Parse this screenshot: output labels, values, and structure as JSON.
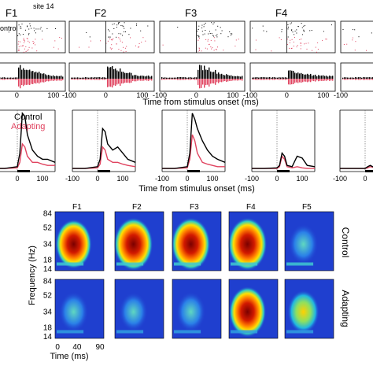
{
  "panel_a": {
    "column_labels": [
      "F1",
      "F2",
      "F3",
      "F4"
    ],
    "site_label": "site 14",
    "row_label_partial": "ontrol",
    "tick_labels": [
      "-100",
      "0",
      "100"
    ],
    "xlabel": "Time from stimulus onset (ms)"
  },
  "panel_b": {
    "legend": [
      "Control",
      "Adapting"
    ],
    "xlabel": "Time from stimulus onset (ms)",
    "tick_labels": [
      "-100",
      "0",
      "100"
    ]
  },
  "panel_c": {
    "column_labels": [
      "F1",
      "F2",
      "F3",
      "F4",
      "F5"
    ],
    "row_labels": [
      "Control",
      "Adapting"
    ],
    "ylabel": "Frequency (Hz)",
    "yticks": [
      "84",
      "52",
      "34",
      "18",
      "14"
    ],
    "xticks": [
      "0",
      "40",
      "90"
    ],
    "xlabel": "Time (ms)"
  },
  "colors": {
    "control": "#000000",
    "adapting": "#e0435f",
    "heatmap_low": "#1f3fcf",
    "heatmap_high": "#8b0000"
  },
  "chart_data": [
    {
      "type": "line",
      "title": "",
      "xlabel": "Time from stimulus onset (ms)",
      "ylabel": "",
      "x": [
        -100,
        -50,
        0,
        10,
        20,
        30,
        40,
        60,
        80,
        100,
        120,
        150
      ],
      "series": [
        {
          "name": "Control",
          "panel": "F1",
          "values": [
            0.05,
            0.05,
            0.08,
            0.3,
            0.95,
            0.9,
            0.6,
            0.35,
            0.25,
            0.2,
            0.2,
            0.15
          ]
        },
        {
          "name": "Adapting",
          "panel": "F1",
          "values": [
            0.05,
            0.05,
            0.06,
            0.15,
            0.45,
            0.4,
            0.25,
            0.15,
            0.15,
            0.12,
            0.1,
            0.1
          ]
        },
        {
          "name": "Control",
          "panel": "F2",
          "values": [
            0.05,
            0.05,
            0.08,
            0.2,
            0.7,
            0.65,
            0.45,
            0.35,
            0.4,
            0.3,
            0.2,
            0.15
          ]
        },
        {
          "name": "Adapting",
          "panel": "F2",
          "values": [
            0.05,
            0.05,
            0.06,
            0.12,
            0.4,
            0.35,
            0.2,
            0.15,
            0.15,
            0.12,
            0.1,
            0.08
          ]
        },
        {
          "name": "Control",
          "panel": "F3",
          "values": [
            0.05,
            0.05,
            0.08,
            0.3,
            0.95,
            0.85,
            0.7,
            0.5,
            0.35,
            0.25,
            0.2,
            0.15
          ]
        },
        {
          "name": "Adapting",
          "panel": "F3",
          "values": [
            0.05,
            0.05,
            0.06,
            0.2,
            0.6,
            0.5,
            0.3,
            0.15,
            0.12,
            0.1,
            0.08,
            0.08
          ]
        },
        {
          "name": "Control",
          "panel": "F4",
          "values": [
            0.05,
            0.05,
            0.06,
            0.1,
            0.3,
            0.25,
            0.1,
            0.08,
            0.25,
            0.22,
            0.1,
            0.08
          ]
        },
        {
          "name": "Adapting",
          "panel": "F4",
          "values": [
            0.05,
            0.05,
            0.05,
            0.08,
            0.25,
            0.2,
            0.08,
            0.06,
            0.08,
            0.06,
            0.05,
            0.05
          ]
        },
        {
          "name": "Control",
          "panel": "F5",
          "values": [
            0.05,
            0.05,
            0.05,
            0.08,
            0.1,
            0.08,
            0.06,
            0.08,
            0.1,
            0.08,
            0.06,
            0.05
          ]
        },
        {
          "name": "Adapting",
          "panel": "F5",
          "values": [
            0.05,
            0.05,
            0.05,
            0.06,
            0.08,
            0.07,
            0.06,
            0.06,
            0.08,
            0.07,
            0.05,
            0.05
          ]
        }
      ]
    }
  ]
}
